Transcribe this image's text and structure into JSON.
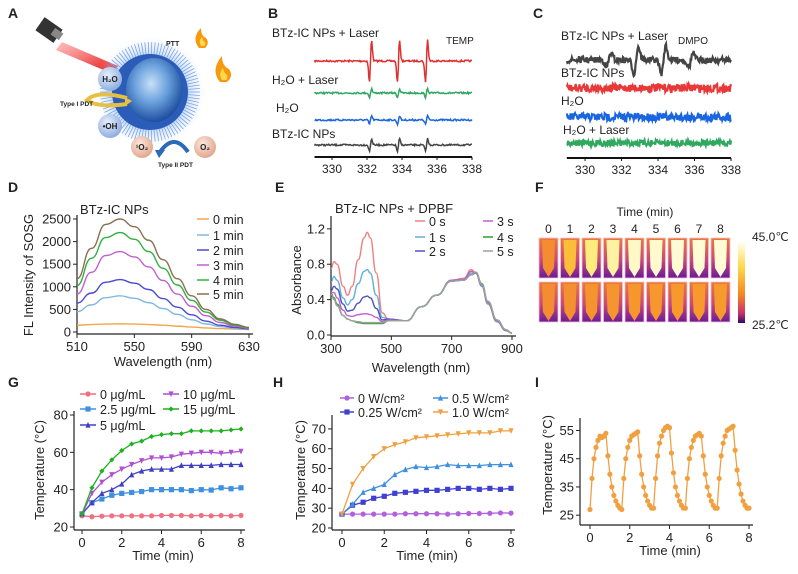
{
  "panel_labels": [
    "A",
    "B",
    "C",
    "D",
    "E",
    "F",
    "G",
    "H",
    "I"
  ],
  "panel_A": {
    "ptt": "PTT",
    "h2o": "H₂O",
    "oh": "•OH",
    "singlet_o2": "¹O₂",
    "o2": "O₂",
    "type1": "Type I PDT",
    "type2": "Type II PDT"
  },
  "panel_F": {
    "title": "Time (min)",
    "columns": [
      "0",
      "1",
      "2",
      "3",
      "4",
      "5",
      "6",
      "7",
      "8"
    ],
    "colorbar_max": "45.0℃",
    "colorbar_min": "25.2℃",
    "top_row_heat_level": [
      0.2,
      0.6,
      0.85,
      0.9,
      0.95,
      0.96,
      0.97,
      0.97,
      0.97
    ],
    "bottom_row_heat_level": [
      0.2,
      0.24,
      0.27,
      0.29,
      0.31,
      0.32,
      0.33,
      0.33,
      0.34
    ]
  },
  "chart_data": [
    {
      "panel": "B",
      "type": "line",
      "annotation": "TEMP",
      "xlim": [
        329,
        338
      ],
      "xticks": [
        "330",
        "332",
        "334",
        "336",
        "338"
      ],
      "peaks": [
        332.2,
        333.8,
        335.4
      ],
      "series": [
        {
          "name": "BTz-IC NPs + Laser",
          "color": "#e03030",
          "relative_amplitude": 1.0
        },
        {
          "name": "H₂O + Laser",
          "color": "#30a860",
          "relative_amplitude": 0.2
        },
        {
          "name": "H₂O",
          "color": "#1a66e0",
          "relative_amplitude": 0.2
        },
        {
          "name": "BTz-IC NPs",
          "color": "#444444",
          "relative_amplitude": 0.3
        }
      ]
    },
    {
      "panel": "C",
      "type": "line",
      "annotation": "DMPO",
      "xlim": [
        329,
        338
      ],
      "xticks": [
        "330",
        "332",
        "334",
        "336",
        "338"
      ],
      "peaks": [
        331.3,
        332.8,
        334.3,
        335.8
      ],
      "peak_ratio": [
        1,
        2,
        2,
        1
      ],
      "series": [
        {
          "name": "BTz-IC NPs + Laser",
          "color": "#444444",
          "relative_amplitude": 1.0
        },
        {
          "name": "BTz-IC NPs",
          "color": "#e83838",
          "relative_amplitude": 0.0
        },
        {
          "name": "H₂O",
          "color": "#1a66e0",
          "relative_amplitude": 0.0
        },
        {
          "name": "H₂O + Laser",
          "color": "#30a860",
          "relative_amplitude": 0.0
        }
      ]
    },
    {
      "panel": "D",
      "type": "line",
      "annotation": "BTz-IC NPs",
      "xlabel": "Wavelength (nm)",
      "ylabel": "FL Intensity of SOSG",
      "xlim": [
        510,
        630
      ],
      "ylim": [
        0,
        2500
      ],
      "xticks": [
        "510",
        "550",
        "590",
        "630"
      ],
      "yticks": [
        "0",
        "500",
        "1000",
        "1500",
        "2000",
        "2500"
      ],
      "x": [
        510,
        520,
        530,
        540,
        550,
        560,
        570,
        580,
        590,
        600,
        610,
        620,
        630
      ],
      "series": [
        {
          "name": "0 min",
          "color": "#f0a848",
          "values": [
            150,
            165,
            175,
            180,
            175,
            165,
            150,
            130,
            110,
            90,
            75,
            65,
            55
          ]
        },
        {
          "name": "1 min",
          "color": "#80b8e0",
          "values": [
            450,
            600,
            760,
            800,
            745,
            650,
            520,
            390,
            270,
            180,
            120,
            80,
            60
          ]
        },
        {
          "name": "2 min",
          "color": "#4a4ad0",
          "values": [
            640,
            860,
            1100,
            1160,
            1080,
            940,
            740,
            550,
            380,
            240,
            150,
            100,
            70
          ]
        },
        {
          "name": "3 min",
          "color": "#c060d0",
          "values": [
            840,
            1320,
            1690,
            1780,
            1660,
            1440,
            1140,
            840,
            570,
            360,
            210,
            130,
            80
          ]
        },
        {
          "name": "4 min",
          "color": "#30b040",
          "values": [
            1030,
            1630,
            2090,
            2200,
            2050,
            1780,
            1410,
            1040,
            700,
            440,
            260,
            150,
            90
          ]
        },
        {
          "name": "5 min",
          "color": "#8a7050",
          "values": [
            1180,
            1850,
            2380,
            2500,
            2330,
            2030,
            1600,
            1180,
            800,
            500,
            290,
            170,
            100
          ]
        }
      ]
    },
    {
      "panel": "E",
      "type": "line",
      "annotation": "BTz-IC NPs + DPBF",
      "xlabel": "Wavelength (nm)",
      "ylabel": "Absorbance",
      "xlim": [
        300,
        900
      ],
      "ylim": [
        0,
        1.3
      ],
      "xticks": [
        "300",
        "500",
        "700",
        "900"
      ],
      "yticks": [
        "0.0",
        "0.4",
        "0.8",
        "1.2"
      ],
      "x": [
        300,
        310,
        320,
        340,
        355,
        370,
        390,
        410,
        420,
        430,
        450,
        470,
        490,
        550,
        600,
        650,
        700,
        740,
        765,
        780,
        800,
        820,
        850,
        880,
        900
      ],
      "series": [
        {
          "name": "0 s",
          "color": "#f08080",
          "values": [
            0.75,
            0.83,
            0.8,
            0.55,
            0.45,
            0.55,
            0.85,
            1.1,
            1.16,
            1.1,
            0.7,
            0.25,
            0.18,
            0.16,
            0.32,
            0.45,
            0.62,
            0.64,
            0.74,
            0.7,
            0.55,
            0.35,
            0.15,
            0.05,
            0.02
          ]
        },
        {
          "name": "1 s",
          "color": "#60b0d8",
          "values": [
            0.6,
            0.66,
            0.62,
            0.42,
            0.34,
            0.4,
            0.58,
            0.72,
            0.74,
            0.7,
            0.45,
            0.2,
            0.18,
            0.16,
            0.32,
            0.45,
            0.62,
            0.63,
            0.7,
            0.7,
            0.55,
            0.36,
            0.15,
            0.05,
            0.02
          ]
        },
        {
          "name": "2 s",
          "color": "#5050c0",
          "values": [
            0.5,
            0.55,
            0.52,
            0.35,
            0.27,
            0.28,
            0.36,
            0.43,
            0.44,
            0.42,
            0.3,
            0.17,
            0.18,
            0.16,
            0.32,
            0.45,
            0.61,
            0.62,
            0.68,
            0.7,
            0.56,
            0.37,
            0.16,
            0.05,
            0.02
          ]
        },
        {
          "name": "3 s",
          "color": "#c060d0",
          "values": [
            0.48,
            0.48,
            0.42,
            0.28,
            0.22,
            0.21,
            0.23,
            0.24,
            0.24,
            0.23,
            0.2,
            0.15,
            0.17,
            0.16,
            0.32,
            0.45,
            0.62,
            0.63,
            0.72,
            0.7,
            0.56,
            0.37,
            0.16,
            0.05,
            0.02
          ]
        },
        {
          "name": "4 s",
          "color": "#30a030",
          "values": [
            0.47,
            0.42,
            0.35,
            0.22,
            0.18,
            0.16,
            0.14,
            0.13,
            0.13,
            0.13,
            0.13,
            0.13,
            0.16,
            0.16,
            0.32,
            0.45,
            0.61,
            0.62,
            0.68,
            0.71,
            0.58,
            0.38,
            0.17,
            0.06,
            0.02
          ]
        },
        {
          "name": "5 s",
          "color": "#a0a0a0",
          "values": [
            0.46,
            0.4,
            0.33,
            0.22,
            0.18,
            0.16,
            0.15,
            0.14,
            0.14,
            0.14,
            0.14,
            0.14,
            0.16,
            0.16,
            0.32,
            0.45,
            0.61,
            0.62,
            0.68,
            0.71,
            0.57,
            0.38,
            0.17,
            0.06,
            0.02
          ]
        }
      ]
    },
    {
      "panel": "G",
      "type": "line",
      "xlabel": "Time (min)",
      "ylabel": "Temperature (°C)",
      "xlim": [
        0,
        8
      ],
      "ylim": [
        20,
        80
      ],
      "xticks": [
        "0",
        "2",
        "4",
        "6",
        "8"
      ],
      "yticks": [
        "20",
        "40",
        "60",
        "80"
      ],
      "x": [
        0,
        0.5,
        1,
        1.5,
        2,
        2.5,
        3,
        3.5,
        4,
        4.5,
        5,
        5.5,
        6,
        6.5,
        7,
        7.5,
        8
      ],
      "series": [
        {
          "name": "0 μg/mL",
          "color": "#f07080",
          "marker": "circle",
          "values": [
            26,
            25.5,
            25.8,
            26,
            26,
            26,
            26,
            26,
            26.2,
            26.2,
            26.2,
            26,
            26.2,
            26,
            26.2,
            26,
            26.2
          ]
        },
        {
          "name": "2.5 μg/mL",
          "color": "#4090e0",
          "marker": "square",
          "values": [
            27,
            33,
            35,
            37,
            38,
            38.5,
            39,
            40,
            40,
            40,
            40,
            39.5,
            40,
            39.8,
            41,
            40.5,
            41
          ]
        },
        {
          "name": "5 μg/mL",
          "color": "#4040c0",
          "marker": "triangle",
          "values": [
            27,
            33,
            38,
            40,
            43,
            48,
            50,
            51,
            51,
            51,
            53,
            53,
            53,
            53,
            53.5,
            53.5,
            53.5
          ]
        },
        {
          "name": "10 μg/mL",
          "color": "#b050d0",
          "marker": "triangle-down",
          "values": [
            27,
            38,
            44,
            48,
            51,
            53.5,
            55.5,
            57,
            57,
            57.5,
            59,
            59.5,
            60,
            60,
            59.5,
            60,
            60.5
          ]
        },
        {
          "name": "15 μg/mL",
          "color": "#20b020",
          "marker": "diamond",
          "values": [
            27,
            41,
            50,
            56,
            61,
            64.5,
            66,
            68.5,
            69.5,
            70,
            70,
            71.5,
            71.5,
            71.5,
            71.5,
            72,
            72.5
          ]
        }
      ]
    },
    {
      "panel": "H",
      "type": "line",
      "xlabel": "Time (min)",
      "ylabel": "Temperature (°C)",
      "xlim": [
        0,
        8
      ],
      "ylim": [
        20,
        75
      ],
      "xticks": [
        "0",
        "2",
        "4",
        "6",
        "8"
      ],
      "yticks": [
        "20",
        "30",
        "40",
        "50",
        "60",
        "70"
      ],
      "x": [
        0,
        0.5,
        1,
        1.5,
        2,
        2.5,
        3,
        3.5,
        4,
        4.5,
        5,
        5.5,
        6,
        6.5,
        7,
        7.5,
        8
      ],
      "series": [
        {
          "name": "0 W/cm²",
          "color": "#b060e0",
          "marker": "circle",
          "values": [
            27,
            27,
            27,
            27,
            27,
            27,
            27.2,
            27.2,
            27.2,
            27.2,
            27,
            27.2,
            27.3,
            27.3,
            27.4,
            27.6,
            27.5
          ]
        },
        {
          "name": "0.25 W/cm²",
          "color": "#4040d0",
          "marker": "square",
          "values": [
            27,
            31.5,
            33,
            35,
            36,
            37.5,
            38,
            38.5,
            39,
            39,
            39.5,
            40,
            40,
            39.5,
            40,
            39.5,
            40
          ]
        },
        {
          "name": "0.5 W/cm²",
          "color": "#4090e0",
          "marker": "triangle",
          "values": [
            27,
            32,
            38,
            40,
            42,
            47,
            49.5,
            51,
            50.5,
            51,
            52,
            51.5,
            51.5,
            51.5,
            52,
            52,
            52
          ]
        },
        {
          "name": "1.0 W/cm²",
          "color": "#f0a040",
          "marker": "triangle-down",
          "values": [
            27,
            42,
            50,
            56,
            60,
            62,
            63.5,
            65.5,
            66,
            66.5,
            67,
            67.5,
            68,
            68,
            68,
            69,
            69
          ]
        }
      ]
    },
    {
      "panel": "I",
      "type": "line",
      "xlabel": "Time (min)",
      "ylabel": "Temperature (°C)",
      "xlim": [
        0,
        8
      ],
      "ylim": [
        24,
        58
      ],
      "xticks": [
        "0",
        "2",
        "4",
        "6",
        "8"
      ],
      "yticks": [
        "25",
        "35",
        "45",
        "55"
      ],
      "x": [
        0,
        0.1,
        0.2,
        0.3,
        0.4,
        0.5,
        0.6,
        0.7,
        0.8,
        0.9,
        1,
        1.1,
        1.2,
        1.3,
        1.4,
        1.5,
        1.6,
        1.7,
        1.8,
        1.9,
        2,
        2.1,
        2.2,
        2.3,
        2.4,
        2.5,
        2.6,
        2.7,
        2.8,
        2.9,
        3,
        3.1,
        3.2,
        3.3,
        3.4,
        3.5,
        3.6,
        3.7,
        3.8,
        3.9,
        4,
        4.1,
        4.2,
        4.3,
        4.4,
        4.5,
        4.6,
        4.7,
        4.8,
        4.9,
        5,
        5.1,
        5.2,
        5.3,
        5.4,
        5.5,
        5.6,
        5.7,
        5.8,
        5.9,
        6,
        6.1,
        6.2,
        6.3,
        6.4,
        6.5,
        6.6,
        6.7,
        6.8,
        6.9,
        7,
        7.1,
        7.2,
        7.3,
        7.4,
        7.5,
        7.6,
        7.7,
        7.8,
        7.9,
        8
      ],
      "series": [
        {
          "color": "#f0a040",
          "marker": "circle",
          "values": [
            27,
            38,
            45,
            49,
            51.5,
            53,
            52.5,
            53,
            54,
            46,
            39.5,
            35,
            32,
            30,
            28.5,
            27.5,
            27,
            38,
            45,
            49,
            51.5,
            53,
            53.5,
            54,
            54.5,
            46,
            39.5,
            35,
            32,
            30,
            28.5,
            27.5,
            27.5,
            38,
            46,
            50.5,
            53,
            55,
            56,
            56.5,
            56,
            47,
            40,
            35,
            32,
            30,
            28.5,
            27.5,
            27.5,
            38,
            45,
            49,
            51.5,
            53,
            53.5,
            54,
            53,
            46,
            39.5,
            35,
            32,
            30,
            28.5,
            27.5,
            27.5,
            38,
            46,
            50.5,
            53,
            55,
            55.5,
            56,
            56.5,
            48,
            41,
            36,
            32.5,
            30,
            28.5,
            27.5,
            27.5
          ]
        }
      ]
    }
  ]
}
